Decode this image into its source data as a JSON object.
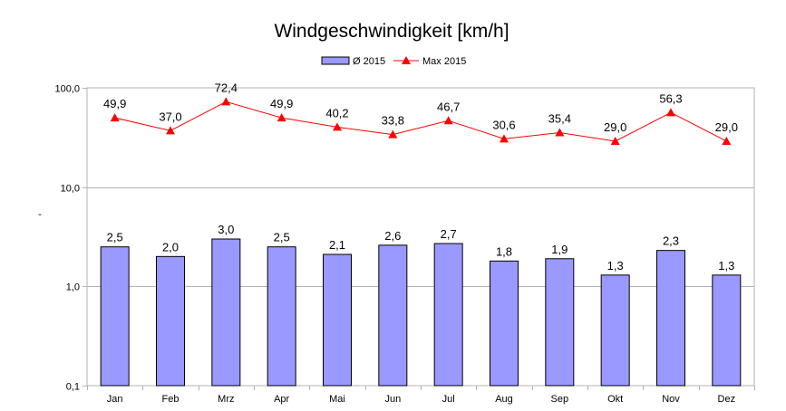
{
  "chart_data": {
    "type": "bar",
    "title": "Windgeschwindigkeit [km/h]",
    "xlabel": "",
    "ylabel": "-",
    "yscale": "log",
    "ylim": [
      0.1,
      100
    ],
    "yticks": [
      "0,1",
      "1,0",
      "10,0",
      "100,0"
    ],
    "grid": "horizontal",
    "legend": "top-center",
    "categories": [
      "Jan",
      "Feb",
      "Mrz",
      "Apr",
      "Mai",
      "Jun",
      "Jul",
      "Aug",
      "Sep",
      "Okt",
      "Nov",
      "Dez"
    ],
    "series": [
      {
        "name": "Ø 2015",
        "kind": "bar",
        "color": "#9999ff",
        "values": [
          2.5,
          2.0,
          3.0,
          2.5,
          2.1,
          2.6,
          2.7,
          1.8,
          1.9,
          1.3,
          2.3,
          1.3
        ],
        "labels": [
          "2,5",
          "2,0",
          "3,0",
          "2,5",
          "2,1",
          "2,6",
          "2,7",
          "1,8",
          "1,9",
          "1,3",
          "2,3",
          "1,3"
        ]
      },
      {
        "name": "Max 2015",
        "kind": "line",
        "color": "#ff0000",
        "marker": "triangle",
        "values": [
          49.9,
          37.0,
          72.4,
          49.9,
          40.2,
          33.8,
          46.7,
          30.6,
          35.4,
          29.0,
          56.3,
          29.0
        ],
        "labels": [
          "49,9",
          "37,0",
          "72,4",
          "49,9",
          "40,2",
          "33,8",
          "46,7",
          "30,6",
          "35,4",
          "29,0",
          "56,3",
          "29,0"
        ]
      }
    ]
  }
}
